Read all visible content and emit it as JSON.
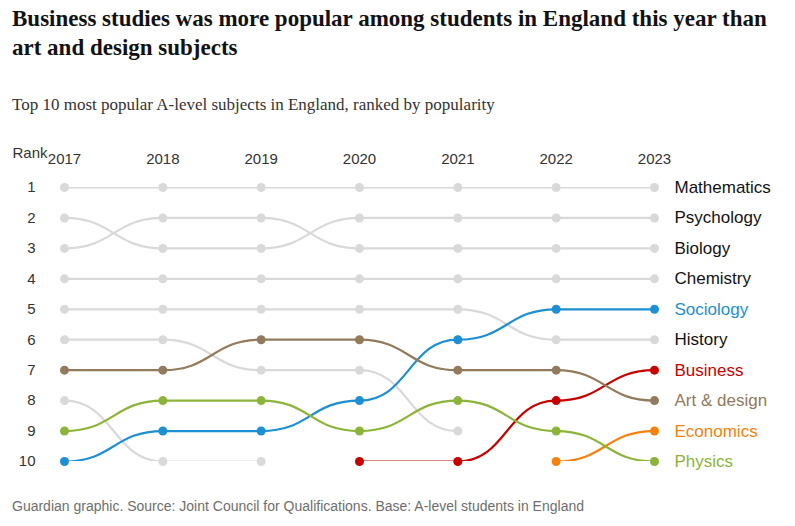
{
  "chart_data": {
    "type": "line",
    "title": "Business studies was more popular among students in England this year than art and design subjects",
    "subtitle": "Top 10 most popular A-level subjects in England, ranked by popularity",
    "caption": "Guardian graphic. Source: Joint Council for Qualifications. Base: A-level students in England",
    "ylabel": "Rank",
    "x": [
      2017,
      2018,
      2019,
      2020,
      2021,
      2022,
      2023
    ],
    "xlim": [
      2017,
      2023
    ],
    "xticks": [
      2017,
      2018,
      2019,
      2020,
      2021,
      2022,
      2023
    ],
    "ylim": [
      1,
      10
    ],
    "yticks": [
      1,
      2,
      3,
      4,
      5,
      6,
      7,
      8,
      9,
      10
    ],
    "color": "#d9d9d9",
    "marker": "circle",
    "series": [
      {
        "name": "Mathematics",
        "values": [
          1,
          1,
          1,
          1,
          1,
          1,
          1
        ]
      },
      {
        "name": "Psychology",
        "values": [
          2,
          3,
          3,
          2,
          2,
          2,
          2
        ]
      },
      {
        "name": "Biology",
        "values": [
          3,
          2,
          2,
          3,
          3,
          3,
          3
        ]
      },
      {
        "name": "Chemistry",
        "values": [
          4,
          4,
          4,
          4,
          4,
          4,
          4
        ]
      },
      {
        "name": "History",
        "values": [
          5,
          5,
          5,
          5,
          5,
          6,
          6
        ]
      },
      {
        "name": null,
        "values": [
          6,
          6,
          7,
          7,
          9,
          null,
          null
        ]
      },
      {
        "name": null,
        "values": [
          8,
          10,
          10,
          null,
          null,
          null,
          null
        ]
      },
      {
        "name": "Sociology",
        "color": "#1d8fd2",
        "values": [
          10,
          9,
          9,
          8,
          6,
          5,
          5
        ]
      },
      {
        "name": "Business",
        "color": "#c70000",
        "values": [
          null,
          null,
          null,
          10,
          10,
          8,
          7
        ]
      },
      {
        "name": "Art & design",
        "color": "#927a5c",
        "values": [
          7,
          7,
          6,
          6,
          7,
          7,
          8
        ]
      },
      {
        "name": "Economics",
        "color": "#f5820d",
        "values": [
          null,
          null,
          null,
          null,
          null,
          10,
          9
        ]
      },
      {
        "name": "Physics",
        "color": "#8db43a",
        "values": [
          9,
          8,
          8,
          9,
          8,
          9,
          10
        ]
      }
    ]
  }
}
